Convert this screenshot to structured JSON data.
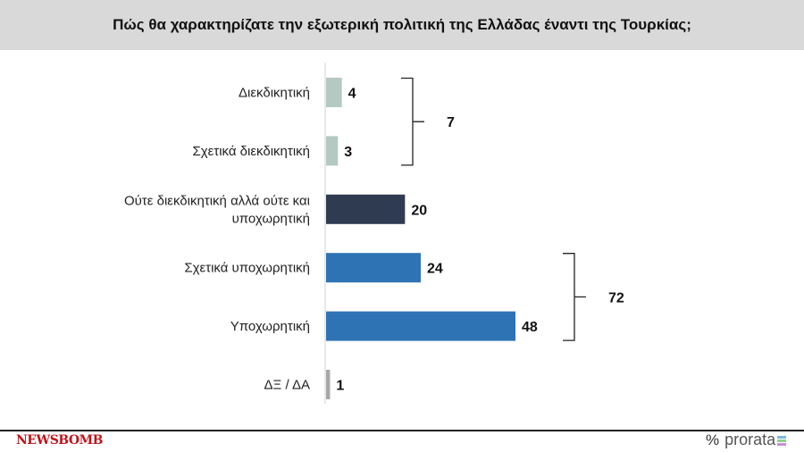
{
  "chart_data": {
    "type": "bar",
    "orientation": "horizontal",
    "title": "Πώς θα χαρακτηρίζατε την εξωτερική πολιτική της Ελλάδας έναντι της Τουρκίας;",
    "categories": [
      "Διεκδικητική",
      "Σχετικά διεκδικητική",
      "Ούτε διεκδικητική αλλά ούτε και υποχωρητική",
      "Σχετικά υποχωρητική",
      "Υποχωρητική",
      "ΔΞ / ΔΑ"
    ],
    "category_lines": [
      [
        "Διεκδικητική"
      ],
      [
        "Σχετικά διεκδικητική"
      ],
      [
        "Ούτε διεκδικητική αλλά ούτε και",
        "υποχωρητική"
      ],
      [
        "Σχετικά υποχωρητική"
      ],
      [
        "Υποχωρητική"
      ],
      [
        "ΔΞ / ΔΑ"
      ]
    ],
    "values": [
      4,
      3,
      20,
      24,
      48,
      1
    ],
    "colors": [
      "#b3c9c1",
      "#b3c9c1",
      "#2f3b51",
      "#2e74b5",
      "#2e74b5",
      "#a6a6a6"
    ],
    "groups": [
      {
        "rows": [
          0,
          1
        ],
        "total": "7"
      },
      {
        "rows": [
          3,
          4
        ],
        "total": "72"
      }
    ],
    "xlim": [
      0,
      50
    ],
    "grid": false,
    "legend": "none"
  },
  "footer": {
    "left_logo": "NEWSBOMB",
    "right_logo": "prorata",
    "right_symbol": "%"
  }
}
